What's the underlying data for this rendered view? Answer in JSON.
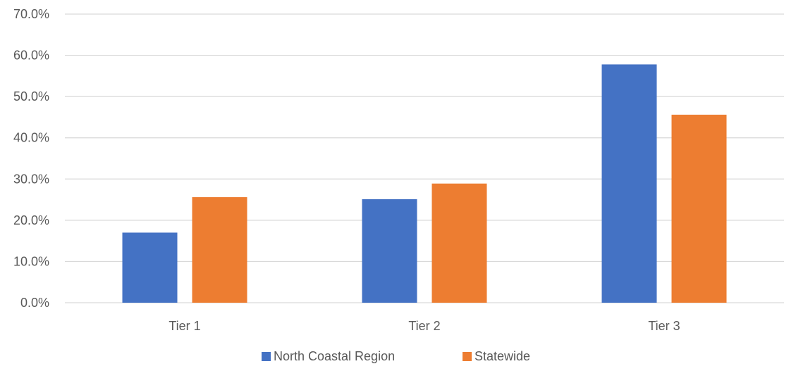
{
  "chart_data": {
    "type": "bar",
    "title": "",
    "xlabel": "",
    "ylabel": "",
    "categories": [
      "Tier 1",
      "Tier 2",
      "Tier 3"
    ],
    "series": [
      {
        "name": "North Coastal Region",
        "color": "#4472C4",
        "values": [
          17.0,
          25.1,
          57.8
        ]
      },
      {
        "name": "Statewide",
        "color": "#ED7D31",
        "values": [
          25.6,
          28.9,
          45.6
        ]
      }
    ],
    "ylim": [
      0,
      70
    ],
    "yticks": [
      {
        "value": 0,
        "label": "0.0%"
      },
      {
        "value": 10,
        "label": "10.0%"
      },
      {
        "value": 20,
        "label": "20.0%"
      },
      {
        "value": 30,
        "label": "30.0%"
      },
      {
        "value": 40,
        "label": "40.0%"
      },
      {
        "value": 50,
        "label": "50.0%"
      },
      {
        "value": 60,
        "label": "60.0%"
      },
      {
        "value": 70,
        "label": "70.0%"
      }
    ],
    "grid": true,
    "legend": "bottom-center",
    "gridline_color": "#D9D9D9"
  }
}
